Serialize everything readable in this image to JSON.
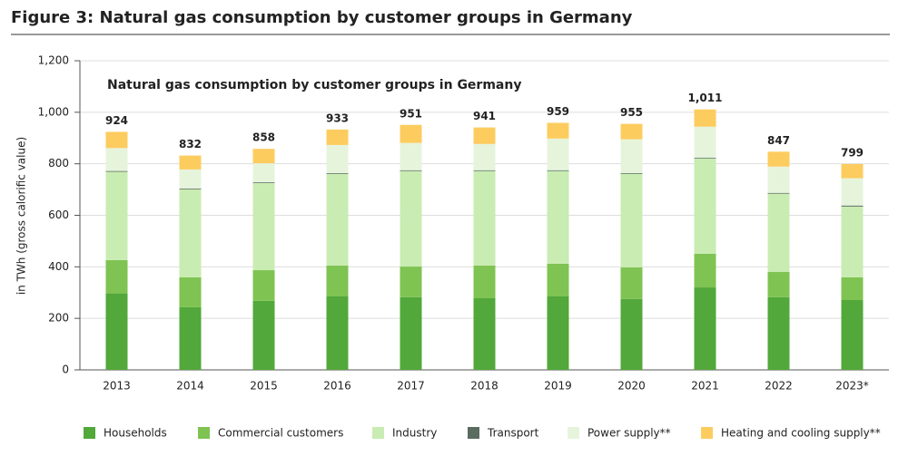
{
  "chart_data": {
    "type": "stacked_bar",
    "figure_title": "Figure 3: Natural gas consumption by customer groups in Germany",
    "title": "Natural gas consumption by customer groups in Germany",
    "y_label": "in TWh (gross calorific value)",
    "categories": [
      "2013",
      "2014",
      "2015",
      "2016",
      "2017",
      "2018",
      "2019",
      "2020",
      "2021",
      "2022",
      "2023*"
    ],
    "series": [
      {
        "name": "Households",
        "color": "#52a83a",
        "values": [
          297,
          243,
          268,
          285,
          282,
          278,
          285,
          275,
          320,
          282,
          271
        ]
      },
      {
        "name": "Commercial customers",
        "color": "#7fc352",
        "values": [
          129,
          116,
          119,
          120,
          119,
          127,
          127,
          123,
          131,
          98,
          88
        ]
      },
      {
        "name": "Industry",
        "color": "#c9ecb2",
        "values": [
          343,
          342,
          338,
          356,
          371,
          367,
          360,
          363,
          370,
          304,
          275
        ]
      },
      {
        "name": "Transport",
        "color": "#5a6b60",
        "values": [
          3,
          3,
          3,
          3,
          3,
          3,
          3,
          3,
          3,
          3,
          4
        ]
      },
      {
        "name": "Power supply**",
        "color": "#e6f4dc",
        "values": [
          89,
          74,
          74,
          109,
          106,
          102,
          123,
          131,
          120,
          102,
          106
        ]
      },
      {
        "name": "Heating and cooling supply**",
        "color": "#fdcc5f",
        "values": [
          63,
          54,
          56,
          60,
          70,
          64,
          61,
          60,
          67,
          58,
          55
        ]
      }
    ],
    "totals": [
      924,
      832,
      858,
      933,
      951,
      941,
      959,
      955,
      1011,
      847,
      799
    ],
    "total_labels": [
      "924",
      "832",
      "858",
      "933",
      "951",
      "941",
      "959",
      "955",
      "1,011",
      "847",
      "799"
    ],
    "ylim": [
      0,
      1200
    ],
    "yticks": [
      0,
      200,
      400,
      600,
      800,
      {
        "value": 1000,
        "label": "1,000"
      },
      {
        "value": 1200,
        "label": "1,200"
      }
    ],
    "grid": true
  }
}
